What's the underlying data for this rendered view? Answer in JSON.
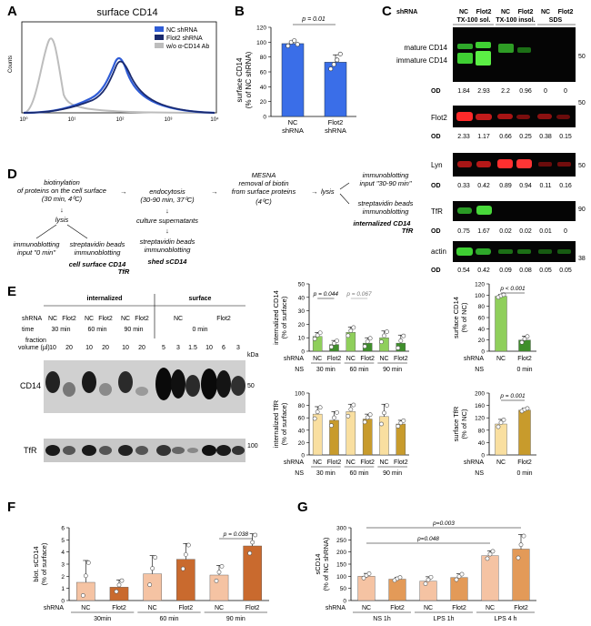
{
  "panels": [
    "A",
    "B",
    "C",
    "D",
    "E",
    "F",
    "G"
  ],
  "panelA": {
    "title": "surface CD14",
    "ylabel": "Counts",
    "legend": [
      "NC shRNA",
      "Flot2 shRNA",
      "w/o α-CD14 Ab"
    ],
    "legend_colors": [
      "#2f5cd6",
      "#1a2a6e",
      "#bdbdbd"
    ],
    "xticks": [
      "10⁰",
      "10¹",
      "10²",
      "10³",
      "10⁴"
    ]
  },
  "panelB": {
    "pvalue": "p = 0.01",
    "categories": [
      "NC\nshRNA",
      "Flot2\nshRNA"
    ],
    "xlabels": [
      [
        "NC",
        "shRNA"
      ],
      [
        "Flot2",
        "shRNA"
      ]
    ],
    "ylabel1": "surface CD14",
    "ylabel2": "(% of NC shRNA)",
    "yticks": [
      "0",
      "20",
      "40",
      "60",
      "80",
      "100",
      "120"
    ]
  },
  "panelC": {
    "header": [
      "shRNA",
      "NC",
      "Flot2",
      "NC",
      "Flot2",
      "NC",
      "Flot2"
    ],
    "fractions": [
      "TX-100 sol.",
      "TX-100 insol.",
      "SDS"
    ],
    "labels": {
      "mature": "mature CD14",
      "immature": "immature CD14",
      "flot2": "Flot2",
      "lyn": "Lyn",
      "tfr": "TfR",
      "actin": "actin"
    },
    "od_label": "OD",
    "od_rows": [
      [
        "1.84",
        "2.93",
        "2.2",
        "0.96",
        "0",
        "0"
      ],
      [
        "2.33",
        "1.17",
        "0.66",
        "0.25",
        "0.38",
        "0.15"
      ],
      [
        "0.33",
        "0.42",
        "0.89",
        "0.94",
        "0.11",
        "0.16"
      ],
      [
        "0.75",
        "1.67",
        "0.02",
        "0.02",
        "0.01",
        "0"
      ],
      [
        "0.54",
        "0.42",
        "0.09",
        "0.08",
        "0.05",
        "0.05"
      ]
    ],
    "mw": [
      "50",
      "50",
      "50",
      "90",
      "38"
    ]
  },
  "panelD": {
    "col1": [
      "biotinylation",
      "of proteins on the cell surface",
      "(30 min, 4⁰C)"
    ],
    "lysis": "lysis",
    "immuno0": [
      "immunoblotting",
      "input \"0 min\""
    ],
    "strep1": [
      "streptavidin beads",
      "immunoblotting"
    ],
    "surface_label": [
      "cell surface CD14",
      "TfR"
    ],
    "endo": [
      "endocytosis",
      "(30-90 min, 37⁰C)"
    ],
    "culture": "culture supernatants",
    "strep2": [
      "streptavidin beads",
      "immunoblotting"
    ],
    "shed_label": "shed sCD14",
    "mesna": [
      "MESNA",
      "removal of biotin",
      "from surface proteins"
    ],
    "mesna_temp": "(4⁰C)",
    "lysis2": "lysis",
    "immuno3090": [
      "immunoblotting",
      "input \"30-90 min\""
    ],
    "strep3": [
      "streptavidin beads",
      "immunoblotting"
    ],
    "internal_label": [
      "internalized CD14",
      "TfR"
    ]
  },
  "panelE": {
    "headers": [
      "internalized",
      "surface"
    ],
    "row_shrna": "shRNA",
    "shrna_int": [
      "NC",
      "Flot2",
      "NC",
      "Flot2",
      "NC",
      "Flot2"
    ],
    "shrna_surf": [
      "NC",
      "Flot2"
    ],
    "row_time": "time",
    "times": [
      "30 min",
      "60 min",
      "90 min",
      "0 min"
    ],
    "row_frac": [
      "fraction",
      "volume (µl)"
    ],
    "volumes": [
      "10",
      "20",
      "10",
      "20",
      "10",
      "20",
      "5",
      "3",
      "1.5",
      "10",
      "6",
      "3"
    ],
    "kda": "kDa",
    "blot_labels": [
      "CD14",
      "TfR"
    ],
    "mw": [
      "50",
      "100"
    ],
    "bar1": {
      "ylabel": [
        "internalized CD14",
        "(% of surface)"
      ],
      "yticks": [
        "0",
        "10",
        "20",
        "30",
        "40",
        "50"
      ],
      "p1": "p = 0.044",
      "p2": "p = 0.067",
      "shrna": "shRNA",
      "ns": "NS",
      "groups": [
        "30 min",
        "60 min",
        "90 min"
      ],
      "xlabels": [
        "NC",
        "Flot2",
        "NC",
        "Flot2",
        "NC",
        "Flot2"
      ]
    },
    "bar2": {
      "ylabel": [
        "surface CD14",
        "(% of NC)"
      ],
      "yticks": [
        "0",
        "20",
        "40",
        "60",
        "80",
        "100",
        "120"
      ],
      "p": "p < 0.001",
      "shrna": "shRNA",
      "ns": "NS",
      "xlabels": [
        "NC",
        "Flot2"
      ],
      "time": "0 min"
    },
    "bar3": {
      "ylabel": [
        "internalized TfR",
        "(% of surface)"
      ],
      "yticks": [
        "0",
        "20",
        "40",
        "60",
        "80",
        "100"
      ],
      "shrna": "shRNA",
      "ns": "NS",
      "groups": [
        "30 min",
        "60 min",
        "90 min"
      ],
      "xlabels": [
        "NC",
        "Flot2",
        "NC",
        "Flot2",
        "NC",
        "Flot2"
      ]
    },
    "bar4": {
      "ylabel": [
        "surface TfR",
        "(% of NC)"
      ],
      "yticks": [
        "0",
        "40",
        "80",
        "120",
        "160",
        "200"
      ],
      "p": "p = 0.001",
      "shrna": "shRNA",
      "ns": "NS",
      "xlabels": [
        "NC",
        "Flot2"
      ],
      "time": "0 min"
    }
  },
  "panelF": {
    "ylabel": [
      "blot. sCD14",
      "(% of surface)"
    ],
    "yticks": [
      "0",
      "1",
      "2",
      "3",
      "4",
      "5",
      "6"
    ],
    "p": "p = 0.038",
    "shrna": "shRNA",
    "xlabels": [
      "NC",
      "Flot2",
      "NC",
      "Flot2",
      "NC",
      "Flot2"
    ],
    "groups": [
      "30min",
      "60 min",
      "90 min"
    ]
  },
  "panelG": {
    "ylabel": [
      "sCD14",
      "(% of NC shRNA)"
    ],
    "yticks": [
      "0",
      "50",
      "100",
      "150",
      "200",
      "250",
      "300"
    ],
    "p1": "p=0.003",
    "p2": "p=0.048",
    "shrna": "shRNA",
    "xlabels": [
      "NC",
      "Flot2",
      "NC",
      "Flot2",
      "NC",
      "Flot2"
    ],
    "groups": [
      "NS 1h",
      "LPS 1h",
      "LPS 4 h"
    ]
  },
  "chart_data": [
    {
      "id": "B",
      "type": "bar",
      "title": "surface CD14",
      "categories": [
        "NC shRNA",
        "Flot2 shRNA"
      ],
      "values": [
        98,
        73
      ],
      "errors": [
        3,
        10
      ],
      "colors": [
        "#3a6ee8",
        "#3a6ee8"
      ],
      "ylabel": "surface CD14 (% of NC shRNA)",
      "ylim": [
        0,
        120
      ],
      "points": [
        [
          95,
          100,
          102,
          97
        ],
        [
          64,
          70,
          76,
          84
        ]
      ]
    },
    {
      "id": "E1",
      "type": "bar",
      "categories": [
        "30 min NC",
        "30 min Flot2",
        "60 min NC",
        "60 min Flot2",
        "90 min NC",
        "90 min Flot2"
      ],
      "values": [
        11,
        5,
        14,
        6,
        10,
        6
      ],
      "errors": [
        3,
        3,
        4,
        4,
        5,
        6
      ],
      "colors": [
        "#8fcf5b",
        "#3f8f2b",
        "#8fcf5b",
        "#3f8f2b",
        "#8fcf5b",
        "#3f8f2b"
      ],
      "ylabel": "internalized CD14 (% of surface)",
      "ylim": [
        0,
        50
      ]
    },
    {
      "id": "E2",
      "type": "bar",
      "categories": [
        "NC",
        "Flot2"
      ],
      "values": [
        98,
        20
      ],
      "errors": [
        3,
        7
      ],
      "colors": [
        "#8fcf5b",
        "#3f8f2b"
      ],
      "ylabel": "surface CD14 (% of NC)",
      "ylim": [
        0,
        120
      ]
    },
    {
      "id": "E3",
      "type": "bar",
      "categories": [
        "30 min NC",
        "30 min Flot2",
        "60 min NC",
        "60 min Flot2",
        "90 min NC",
        "90 min Flot2"
      ],
      "values": [
        66,
        56,
        70,
        58,
        62,
        50
      ],
      "errors": [
        12,
        14,
        12,
        8,
        20,
        6
      ],
      "colors": [
        "#f9dfa0",
        "#c89b2c",
        "#f9dfa0",
        "#c89b2c",
        "#f9dfa0",
        "#c89b2c"
      ],
      "ylabel": "internalized TfR (% of surface)",
      "ylim": [
        0,
        100
      ]
    },
    {
      "id": "E4",
      "type": "bar",
      "categories": [
        "NC",
        "Flot2"
      ],
      "values": [
        100,
        145
      ],
      "errors": [
        15,
        6
      ],
      "colors": [
        "#f9dfa0",
        "#c89b2c"
      ],
      "ylabel": "surface TfR (% of NC)",
      "ylim": [
        0,
        200
      ]
    },
    {
      "id": "F",
      "type": "bar",
      "categories": [
        "30min NC",
        "30min Flot2",
        "60 min NC",
        "60 min Flot2",
        "90 min NC",
        "90 min Flot2"
      ],
      "values": [
        1.5,
        1.1,
        2.2,
        3.4,
        2.1,
        4.5
      ],
      "errors": [
        1.8,
        0.6,
        1.5,
        1.3,
        0.8,
        1.0
      ],
      "colors": [
        "#f5c3a3",
        "#c96a2e",
        "#f5c3a3",
        "#c96a2e",
        "#f5c3a3",
        "#c96a2e"
      ],
      "ylabel": "blot. sCD14 (% of surface)",
      "ylim": [
        0,
        6
      ]
    },
    {
      "id": "G",
      "type": "bar",
      "categories": [
        "NS 1h NC",
        "NS 1h Flot2",
        "LPS 1h NC",
        "LPS 1h Flot2",
        "LPS 4h NC",
        "LPS 4h Flot2"
      ],
      "values": [
        100,
        88,
        80,
        95,
        185,
        212
      ],
      "errors": [
        12,
        8,
        18,
        15,
        20,
        60
      ],
      "colors": [
        "#f5c3a3",
        "#e39a58",
        "#f5c3a3",
        "#e39a58",
        "#f5c3a3",
        "#e39a58"
      ],
      "ylabel": "sCD14 (% of NC shRNA)",
      "ylim": [
        0,
        300
      ]
    }
  ]
}
